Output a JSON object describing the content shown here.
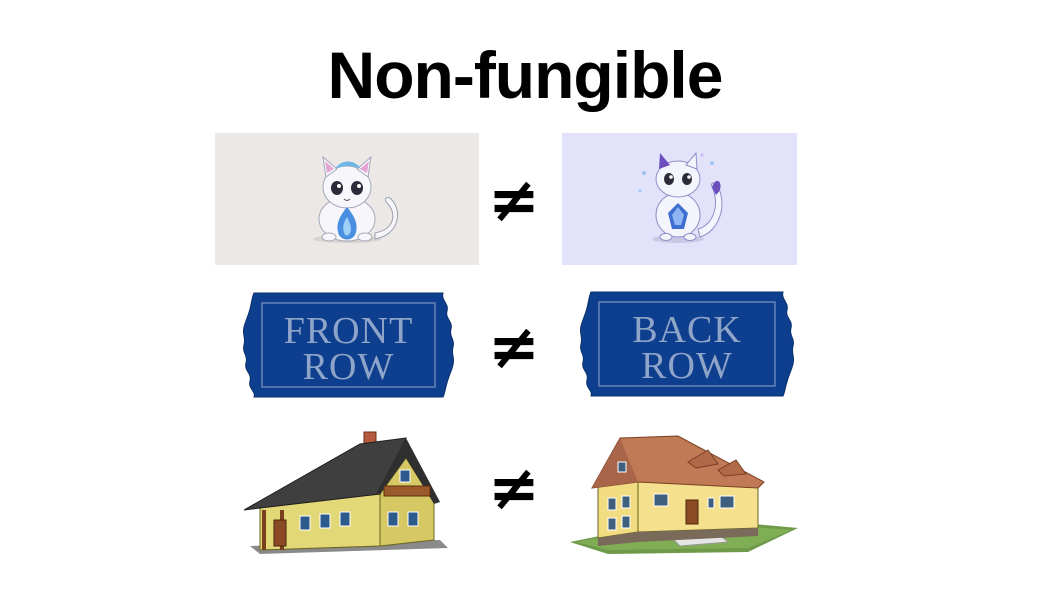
{
  "title": "Non-fungible",
  "not_equal_symbol": "≠",
  "rows": [
    {
      "left": {
        "kind": "cat",
        "background": "#ece8e6",
        "icon": "cat-icon"
      },
      "right": {
        "kind": "cat",
        "background": "#e2e2fb",
        "icon": "cat-icon"
      }
    },
    {
      "left": {
        "kind": "ticket",
        "line1": "FRONT",
        "line2": "ROW",
        "color": "#0d3f8e",
        "icon": "ticket-icon"
      },
      "right": {
        "kind": "ticket",
        "line1": "BACK",
        "line2": "ROW",
        "color": "#0d3f8e",
        "icon": "ticket-icon"
      }
    },
    {
      "left": {
        "kind": "house",
        "icon": "house-icon",
        "wall": "#e3d877",
        "roof": "#3f3f3f"
      },
      "right": {
        "kind": "house",
        "icon": "house-icon",
        "wall": "#f1dc82",
        "roof": "#c07a55"
      }
    }
  ]
}
